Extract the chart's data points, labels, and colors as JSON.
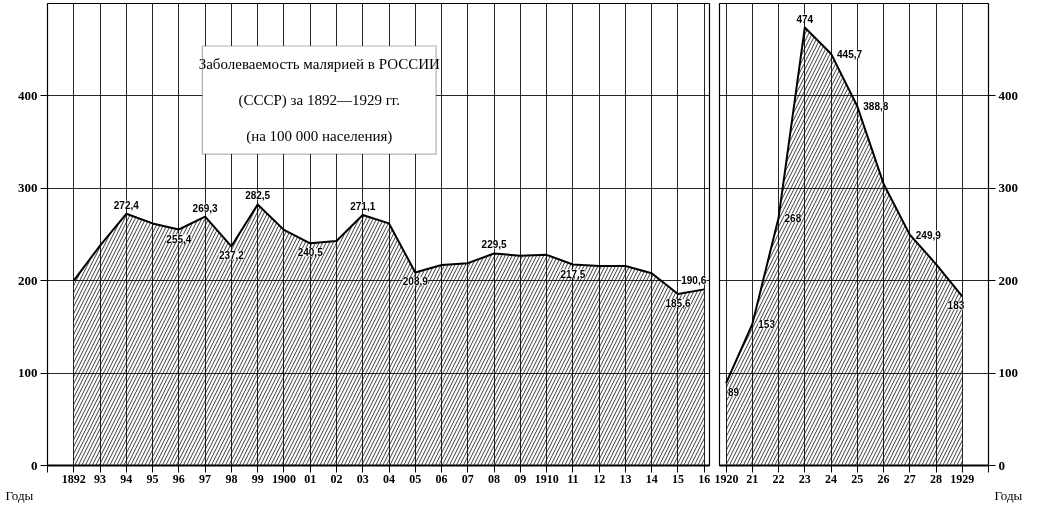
{
  "chart_data": [
    {
      "type": "area",
      "title": "Заболеваемость малярией в РОССИИ (СССР) за 1892—1929 гг.",
      "subtitle": "(на 100 000 населения)",
      "xlabel": "Годы",
      "color": "#000000",
      "grid": true,
      "x": [
        1892,
        1893,
        1894,
        1895,
        1896,
        1897,
        1898,
        1899,
        1900,
        1901,
        1902,
        1903,
        1904,
        1905,
        1906,
        1907,
        1908,
        1909,
        1910,
        1911,
        1912,
        1913,
        1914,
        1915,
        1916
      ],
      "values": [
        200,
        238,
        272.4,
        262,
        255.4,
        269.3,
        237.2,
        282.5,
        255,
        240.5,
        243,
        271.1,
        262,
        208.9,
        217,
        219,
        229.5,
        227,
        228,
        217.5,
        216,
        216,
        208,
        185.6,
        190.6
      ],
      "value_labels": [
        null,
        null,
        "272,4",
        null,
        "255,4",
        "269,3",
        "237,2",
        "282,5",
        null,
        "240,5",
        null,
        "271,1",
        null,
        "208,9",
        null,
        null,
        "229,5",
        null,
        null,
        "217,5",
        null,
        null,
        null,
        "185,6",
        "190,6"
      ],
      "xlim": [
        1891,
        1916.2
      ],
      "xticks": [
        {
          "value": 1891,
          "label": null
        },
        1892,
        {
          "value": 1893,
          "label": "93"
        },
        {
          "value": 1894,
          "label": "94"
        },
        {
          "value": 1895,
          "label": "95"
        },
        {
          "value": 1896,
          "label": "96"
        },
        {
          "value": 1897,
          "label": "97"
        },
        {
          "value": 1898,
          "label": "98"
        },
        {
          "value": 1899,
          "label": "99"
        },
        1900,
        {
          "value": 1901,
          "label": "01"
        },
        {
          "value": 1902,
          "label": "02"
        },
        {
          "value": 1903,
          "label": "03"
        },
        {
          "value": 1904,
          "label": "04"
        },
        {
          "value": 1905,
          "label": "05"
        },
        {
          "value": 1906,
          "label": "06"
        },
        {
          "value": 1907,
          "label": "07"
        },
        {
          "value": 1908,
          "label": "08"
        },
        {
          "value": 1909,
          "label": "09"
        },
        1910,
        {
          "value": 1911,
          "label": "11"
        },
        {
          "value": 1912,
          "label": "12"
        },
        {
          "value": 1913,
          "label": "13"
        },
        {
          "value": 1914,
          "label": "14"
        },
        {
          "value": 1915,
          "label": "15"
        },
        {
          "value": 1916,
          "label": "16"
        }
      ],
      "ylim": [
        0,
        500
      ],
      "yticks": [
        0,
        100,
        200,
        300,
        400
      ]
    },
    {
      "type": "area",
      "xlabel": "Годы",
      "color": "#000000",
      "grid": true,
      "x": [
        1920,
        1921,
        1922,
        1923,
        1924,
        1925,
        1926,
        1927,
        1928,
        1929
      ],
      "values": [
        89,
        153,
        268,
        474,
        445.7,
        388.8,
        305,
        249.9,
        218,
        183
      ],
      "value_labels": [
        "89",
        "153",
        "268",
        "474",
        "445,7",
        "388,8",
        null,
        "249,9",
        null,
        "183"
      ],
      "xlim": [
        1919.75,
        1930
      ],
      "xticks": [
        1920,
        {
          "value": 1921,
          "label": "21"
        },
        {
          "value": 1922,
          "label": "22"
        },
        {
          "value": 1923,
          "label": "23"
        },
        {
          "value": 1924,
          "label": "24"
        },
        {
          "value": 1925,
          "label": "25"
        },
        {
          "value": 1926,
          "label": "26"
        },
        {
          "value": 1927,
          "label": "27"
        },
        {
          "value": 1928,
          "label": "28"
        },
        1929,
        {
          "value": 1930,
          "label": null
        }
      ],
      "ylim": [
        0,
        500
      ],
      "yticks": [
        0,
        100,
        200,
        300,
        400
      ]
    }
  ]
}
